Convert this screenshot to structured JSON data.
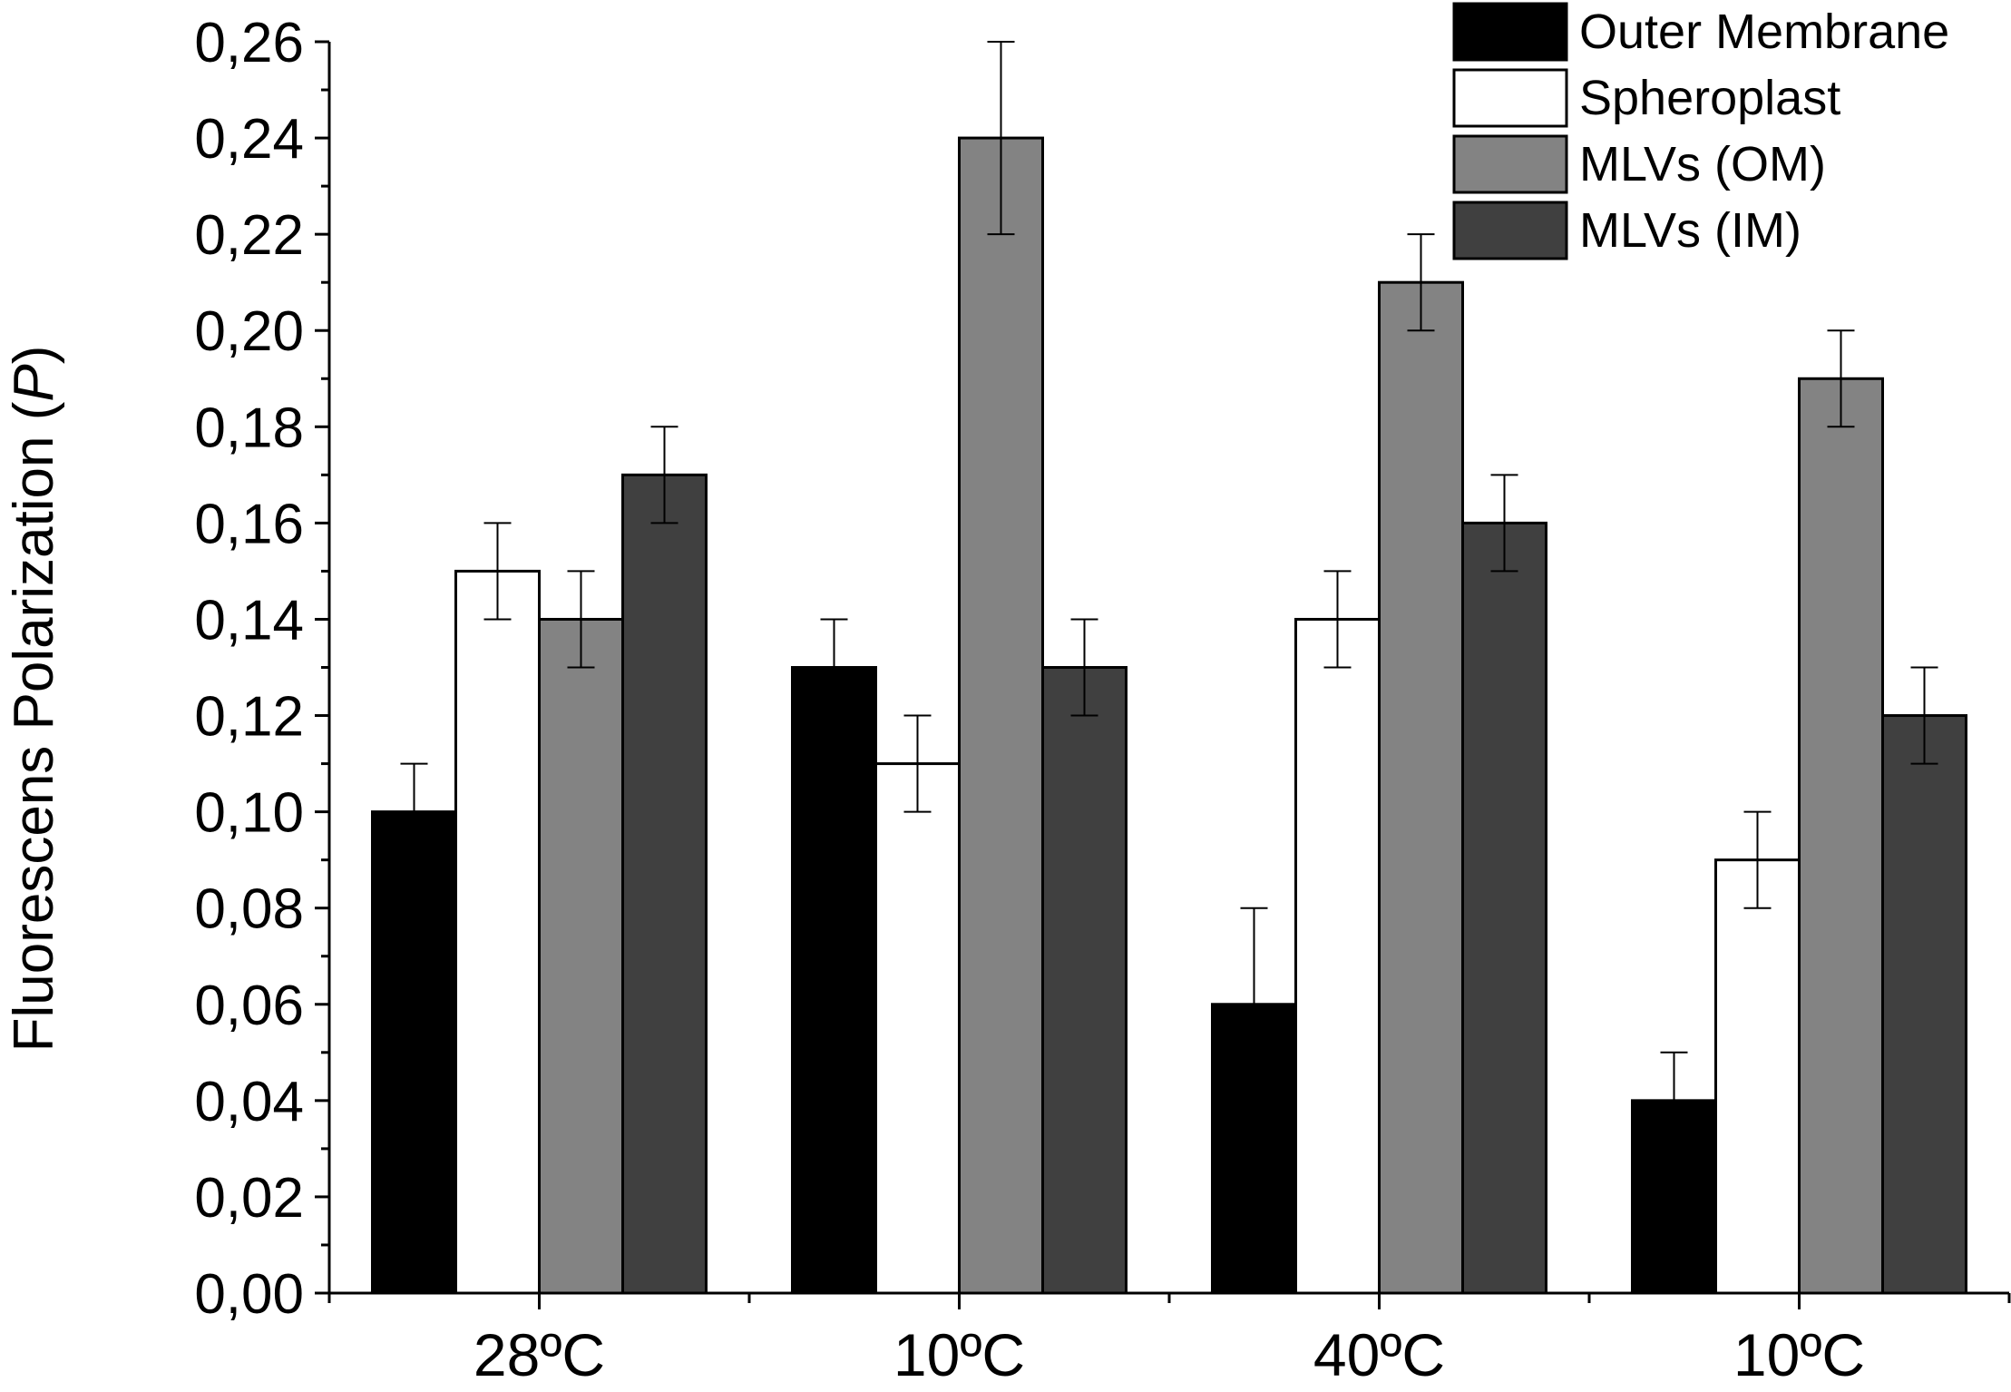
{
  "chart_data": {
    "type": "bar",
    "title": "",
    "xlabel": "",
    "ylabel": "Fluorescens Polarization (",
    "ylabel_italic": "P",
    "ylabel_close": ")",
    "ylim": [
      0,
      0.26
    ],
    "yticks": [
      "0,00",
      "0,02",
      "0,04",
      "0,06",
      "0,08",
      "0,10",
      "0,12",
      "0,14",
      "0,16",
      "0,18",
      "0,20",
      "0,22",
      "0,24",
      "0,26"
    ],
    "categories": [
      "28ºC",
      "10ºC",
      "40ºC",
      "10ºC"
    ],
    "series": [
      {
        "name": "Outer Membrane",
        "color": "#000000",
        "values": [
          0.1,
          0.13,
          0.06,
          0.04
        ],
        "errors": [
          0.01,
          0.01,
          0.02,
          0.01
        ]
      },
      {
        "name": "Spheroplast",
        "color": "#ffffff",
        "values": [
          0.15,
          0.11,
          0.14,
          0.09
        ],
        "errors": [
          0.01,
          0.01,
          0.01,
          0.01
        ]
      },
      {
        "name": "MLVs (OM)",
        "color": "#838383",
        "values": [
          0.14,
          0.24,
          0.21,
          0.19
        ],
        "errors": [
          0.01,
          0.02,
          0.01,
          0.01
        ]
      },
      {
        "name": "MLVs (IM)",
        "color": "#404040",
        "values": [
          0.17,
          0.13,
          0.16,
          0.12
        ],
        "errors": [
          0.01,
          0.01,
          0.01,
          0.01
        ]
      }
    ],
    "legend_position": "top-right"
  }
}
